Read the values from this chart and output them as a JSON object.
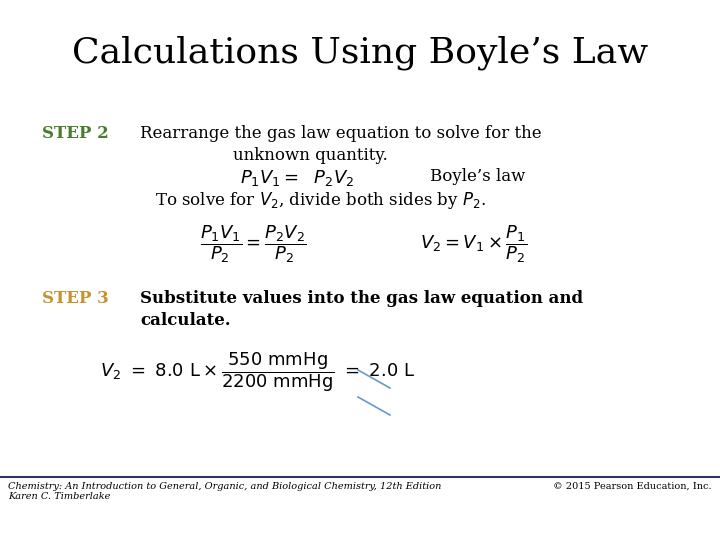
{
  "title": "Calculations Using Boyle’s Law",
  "title_fontsize": 26,
  "title_color": "#000000",
  "bg_color": "#ffffff",
  "step2_label": "STEP 2",
  "step2_color": "#4a7c2f",
  "step3_label": "STEP 3",
  "step3_color": "#c8922a",
  "footer_left": "Chemistry: An Introduction to General, Organic, and Biological Chemistry, 12th Edition\nKaren C. Timberlake",
  "footer_right": "© 2015 Pearson Education, Inc.",
  "footer_fontsize": 7,
  "line_color": "#333366",
  "text_fontsize": 12,
  "eq_fontsize": 13
}
